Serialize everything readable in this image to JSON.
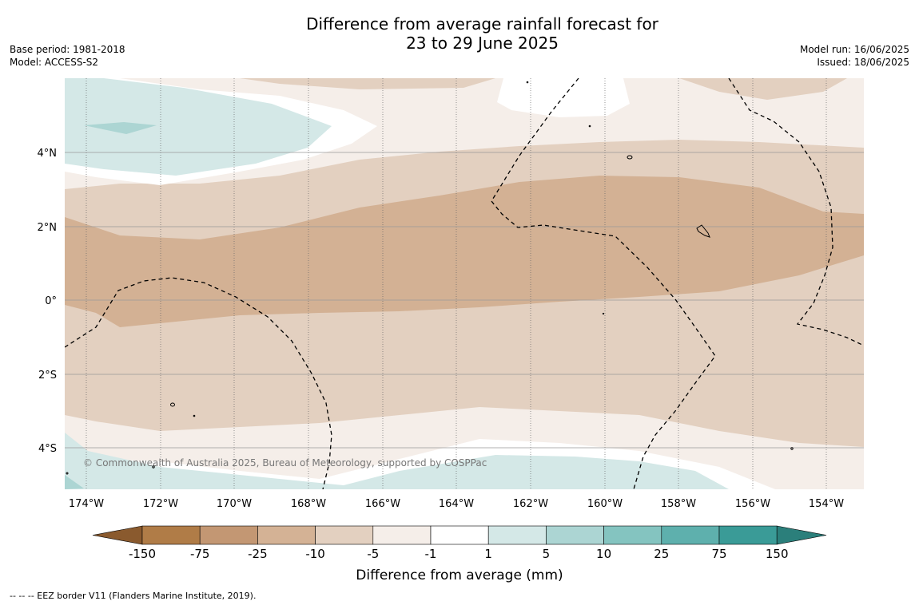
{
  "title_line1": "Difference from average rainfall forecast for",
  "title_line2": "23 to 29 June 2025",
  "base_period": "Base period: 1981-2018",
  "model": "Model: ACCESS-S2",
  "model_run": "Model run: 16/06/2025",
  "issued": "Issued: 18/06/2025",
  "copyright": "© Commonwealth of Australia 2025, Bureau of Meteorology, supported by COSPPac",
  "footnote": "--  --  -- EEZ border V11 (Flanders Marine Institute, 2019).",
  "lon_ticks": [
    "174°W",
    "172°W",
    "170°W",
    "168°W",
    "166°W",
    "164°W",
    "162°W",
    "160°W",
    "158°W",
    "156°W",
    "154°W"
  ],
  "lat_ticks": [
    "4°N",
    "2°N",
    "0°",
    "2°S",
    "4°S"
  ],
  "colorbar": {
    "label": "Difference from average (mm)",
    "ticks": [
      "-150",
      "-75",
      "-25",
      "-10",
      "-5",
      "-1",
      "1",
      "5",
      "10",
      "25",
      "75",
      "150"
    ],
    "colors": [
      "#8a5a2e",
      "#b07c47",
      "#c39773",
      "#d4b295",
      "#e3d0c0",
      "#f5eee9",
      "#ffffff",
      "#d4e8e7",
      "#acd5d3",
      "#84c4c0",
      "#5eb0ad",
      "#3a9b97",
      "#2b7f7b"
    ]
  },
  "fill_colors": {
    "lt_brown": "#f5eee9",
    "tan": "#e3d0c0",
    "mid_brown": "#d3b194",
    "lt_teal": "#d4e8e7",
    "teal": "#acd5d3",
    "white": "#ffffff"
  }
}
